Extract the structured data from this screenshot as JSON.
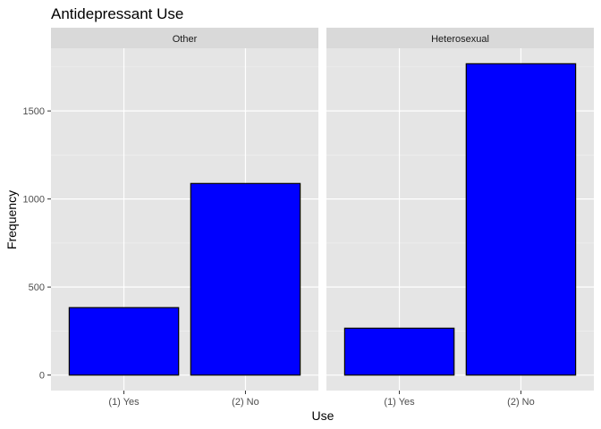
{
  "chart_data": {
    "type": "bar",
    "title": "Antidepressant Use",
    "xlabel": "Use",
    "ylabel": "Frequency",
    "categories": [
      "(1) Yes",
      "(2) No"
    ],
    "facets": [
      {
        "name": "Other",
        "values": [
          383,
          1088
        ]
      },
      {
        "name": "Heterosexual",
        "values": [
          266,
          1768
        ]
      }
    ],
    "yticks": [
      0,
      500,
      1000,
      1500
    ],
    "ylim": [
      -88,
      1856
    ],
    "bar_fill": "#0000FF",
    "bar_stroke": "#000000",
    "panel_background": "#E5E5E5",
    "strip_background": "#D9D9D9",
    "grid": true,
    "legend": "none"
  }
}
